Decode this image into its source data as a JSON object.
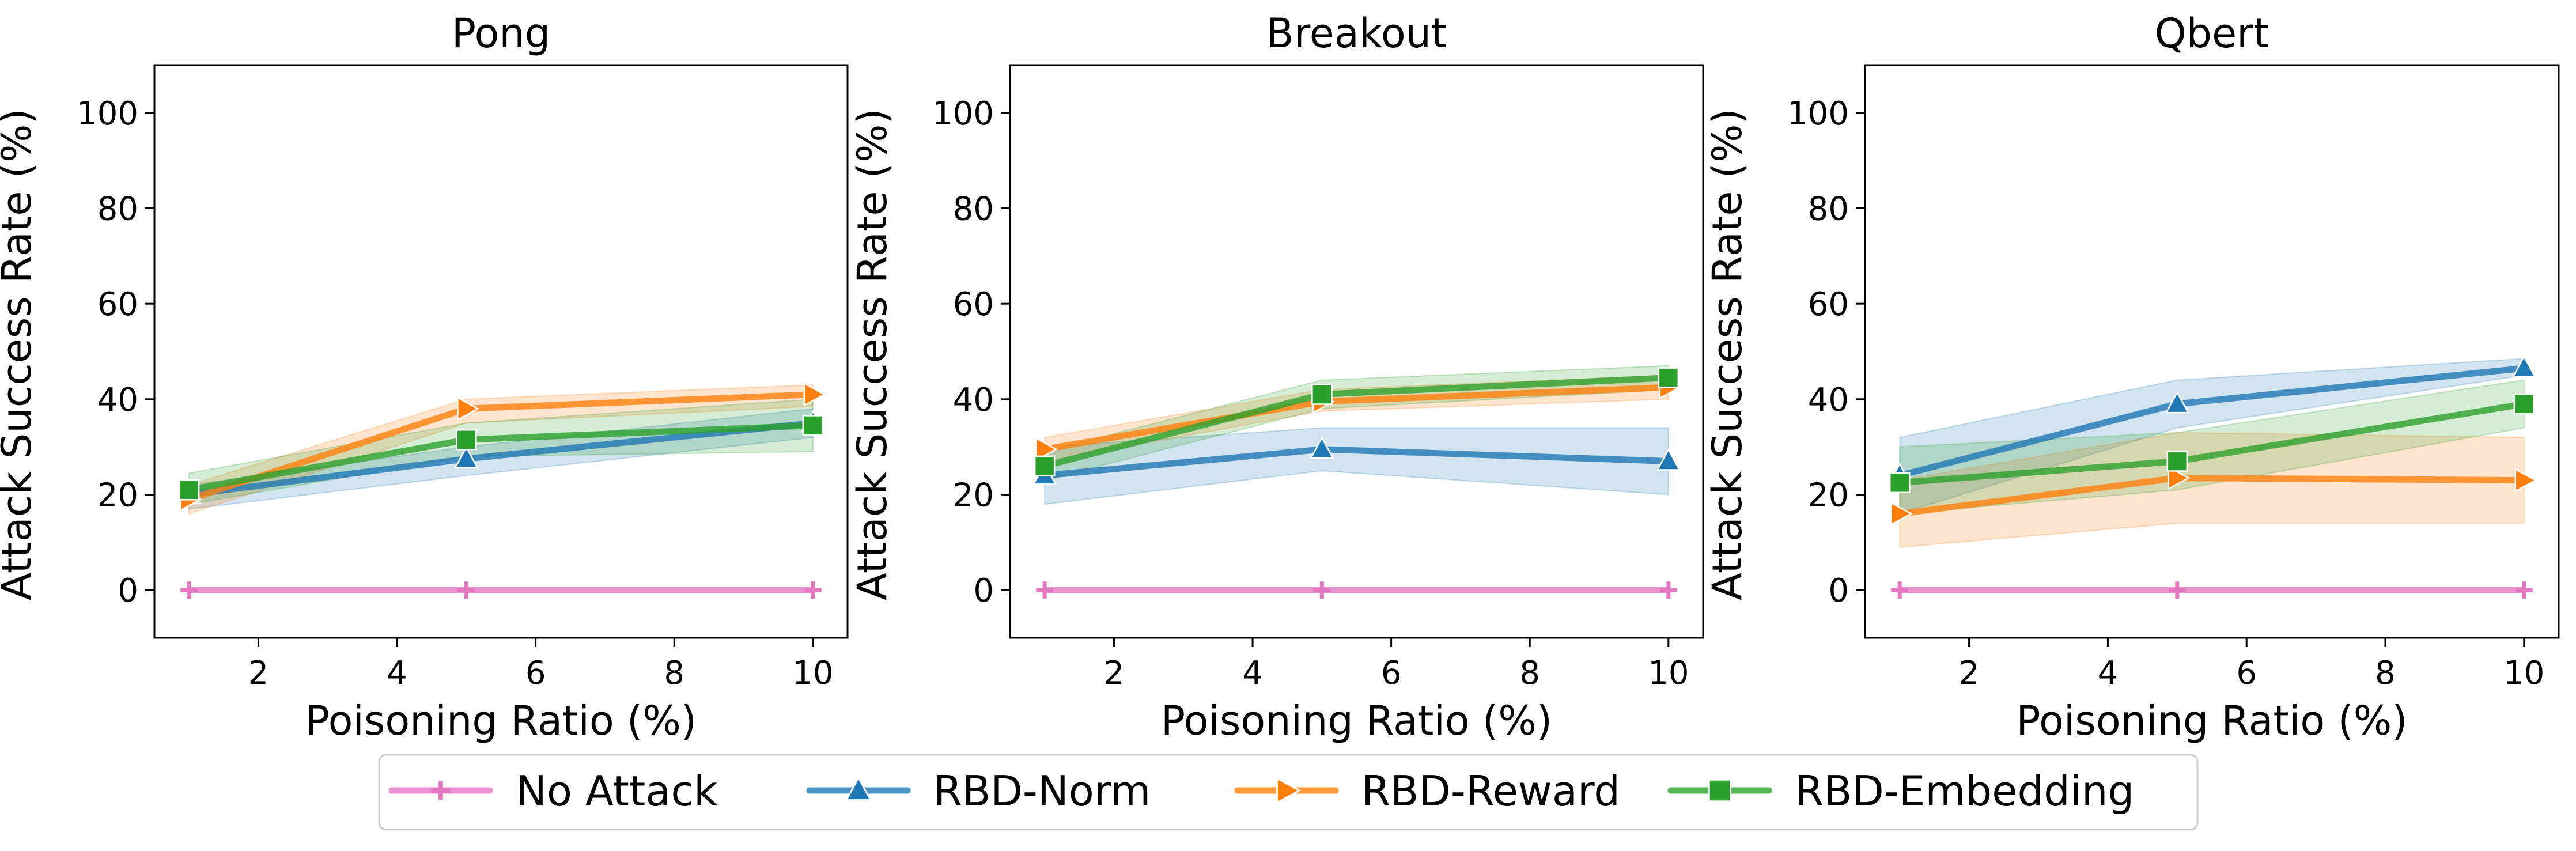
{
  "chart_data": [
    {
      "type": "line",
      "title": "Pong",
      "xlabel": "Poisoning Ratio (%)",
      "ylabel": "Attack Success Rate (%)",
      "xlim": [
        0.5,
        10.5
      ],
      "ylim": [
        -10,
        110
      ],
      "xticks": [
        2,
        4,
        6,
        8,
        10
      ],
      "yticks": [
        0,
        20,
        40,
        60,
        80,
        100
      ],
      "x": [
        1,
        5,
        10
      ],
      "series": [
        {
          "name": "No Attack",
          "values": [
            0,
            0,
            0
          ],
          "lower": [
            0,
            0,
            0
          ],
          "upper": [
            0,
            0,
            0
          ]
        },
        {
          "name": "RBD-Norm",
          "values": [
            20,
            27.5,
            35
          ],
          "lower": [
            17,
            24,
            32
          ],
          "upper": [
            22,
            30,
            38
          ]
        },
        {
          "name": "RBD-Reward",
          "values": [
            19,
            38,
            41
          ],
          "lower": [
            16,
            35,
            38.5
          ],
          "upper": [
            22,
            40,
            43
          ]
        },
        {
          "name": "RBD-Embedding",
          "values": [
            21,
            31.5,
            34.5
          ],
          "lower": [
            18,
            28,
            29
          ],
          "upper": [
            24.5,
            35,
            40
          ]
        }
      ]
    },
    {
      "type": "line",
      "title": "Breakout",
      "xlabel": "Poisoning Ratio (%)",
      "ylabel": "Attack Success Rate (%)",
      "xlim": [
        0.5,
        10.5
      ],
      "ylim": [
        -10,
        110
      ],
      "xticks": [
        2,
        4,
        6,
        8,
        10
      ],
      "yticks": [
        0,
        20,
        40,
        60,
        80,
        100
      ],
      "x": [
        1,
        5,
        10
      ],
      "series": [
        {
          "name": "No Attack",
          "values": [
            0,
            0,
            0
          ],
          "lower": [
            0,
            0,
            0
          ],
          "upper": [
            0,
            0,
            0
          ]
        },
        {
          "name": "RBD-Norm",
          "values": [
            24,
            29.5,
            27
          ],
          "lower": [
            18,
            25,
            20
          ],
          "upper": [
            30,
            34,
            34
          ]
        },
        {
          "name": "RBD-Reward",
          "values": [
            29.5,
            39.5,
            42.5
          ],
          "lower": [
            27,
            37.5,
            40
          ],
          "upper": [
            32,
            42,
            45
          ]
        },
        {
          "name": "RBD-Embedding",
          "values": [
            26,
            41,
            44.5
          ],
          "lower": [
            23,
            38,
            42
          ],
          "upper": [
            29,
            44,
            47
          ]
        }
      ]
    },
    {
      "type": "line",
      "title": "Qbert",
      "xlabel": "Poisoning Ratio (%)",
      "ylabel": "Attack Success Rate (%)",
      "xlim": [
        0.5,
        10.5
      ],
      "ylim": [
        -10,
        110
      ],
      "xticks": [
        2,
        4,
        6,
        8,
        10
      ],
      "yticks": [
        0,
        20,
        40,
        60,
        80,
        100
      ],
      "x": [
        1,
        5,
        10
      ],
      "series": [
        {
          "name": "No Attack",
          "values": [
            0,
            0,
            0
          ],
          "lower": [
            0,
            0,
            0
          ],
          "upper": [
            0,
            0,
            0
          ]
        },
        {
          "name": "RBD-Norm",
          "values": [
            24,
            39,
            46.5
          ],
          "lower": [
            16,
            34,
            45
          ],
          "upper": [
            32,
            44,
            48.5
          ]
        },
        {
          "name": "RBD-Reward",
          "values": [
            16,
            23.5,
            23
          ],
          "lower": [
            9,
            14,
            14
          ],
          "upper": [
            23,
            33,
            32
          ]
        },
        {
          "name": "RBD-Embedding",
          "values": [
            22.5,
            27,
            39
          ],
          "lower": [
            16,
            21,
            34
          ],
          "upper": [
            30,
            33,
            44
          ]
        }
      ]
    }
  ],
  "legend": {
    "position": "bottom-center",
    "items": [
      {
        "label": "No Attack",
        "color": "#e377c2",
        "marker": "plus"
      },
      {
        "label": "RBD-Norm",
        "color": "#1f77b4",
        "marker": "triangle"
      },
      {
        "label": "RBD-Reward",
        "color": "#ff7f0e",
        "marker": "triangle-right"
      },
      {
        "label": "RBD-Embedding",
        "color": "#2ca02c",
        "marker": "square"
      }
    ]
  },
  "colors": {
    "No Attack": "#e377c2",
    "RBD-Norm": "#1f77b4",
    "RBD-Reward": "#ff7f0e",
    "RBD-Embedding": "#2ca02c"
  }
}
